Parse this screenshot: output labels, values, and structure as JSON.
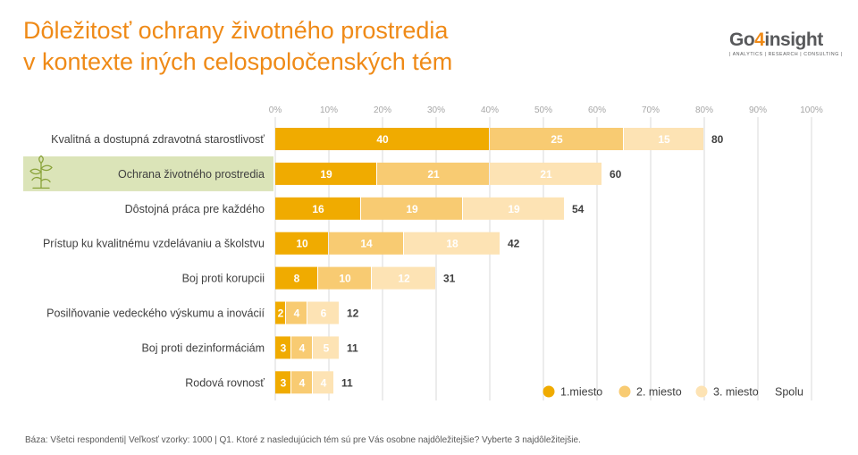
{
  "title": {
    "line1": "Dôležitosť ochrany životného prostredia",
    "line2": "v kontexte iných celospoločenských tém"
  },
  "logo": {
    "prefix": "Go",
    "digit": "4",
    "suffix": "insight",
    "tagline": "| ANALYTICS | RESEARCH | CONSULTING |"
  },
  "footer": {
    "note": "Báza: Všetci respondenti| Veľkosť vzorky: 1000 | Q1.  Ktoré z nasledujúcich tém sú pre Vás osobne najdôležitejšie? Vyberte 3 najdôležitejšie."
  },
  "colors": {
    "first": "#f0ab00",
    "second": "#f8cb72",
    "third": "#fde3b4",
    "highlight": "#dbe4b8",
    "plant": "#8aa33a",
    "total_text": "#404040",
    "label_text": "#404040",
    "tick_text": "#a6a6a6",
    "grid": "#d9d9d9"
  },
  "chart_data": {
    "type": "bar",
    "orientation": "horizontal",
    "stacked": true,
    "categories": [
      "Kvalitná a dostupná zdravotná starostlivosť",
      "Ochrana životného prostredia",
      "Dôstojná práca pre každého",
      "Prístup ku kvalitnému vzdelávaniu a školstvu",
      "Boj proti korupcii",
      "Posilňovanie vedeckého výskumu a inovácií",
      "Boj proti dezinformáciám",
      "Rodová rovnosť"
    ],
    "highlighted_category": "Ochrana životného prostredia",
    "series": [
      {
        "name": "1.miesto",
        "values": [
          40,
          19,
          16,
          10,
          8,
          2,
          3,
          3
        ]
      },
      {
        "name": "2. miesto",
        "values": [
          25,
          21,
          19,
          14,
          10,
          4,
          4,
          4
        ]
      },
      {
        "name": "3. miesto",
        "values": [
          15,
          21,
          19,
          18,
          12,
          6,
          5,
          4
        ]
      }
    ],
    "totals_label": "Spolu",
    "totals": [
      80,
      60,
      54,
      42,
      31,
      12,
      11,
      11
    ],
    "xlim": [
      0,
      100
    ],
    "xticks": [
      "0%",
      "10%",
      "20%",
      "30%",
      "40%",
      "50%",
      "60%",
      "70%",
      "80%",
      "90%",
      "100%"
    ],
    "grid": true,
    "legend_position": "bottom-right"
  }
}
